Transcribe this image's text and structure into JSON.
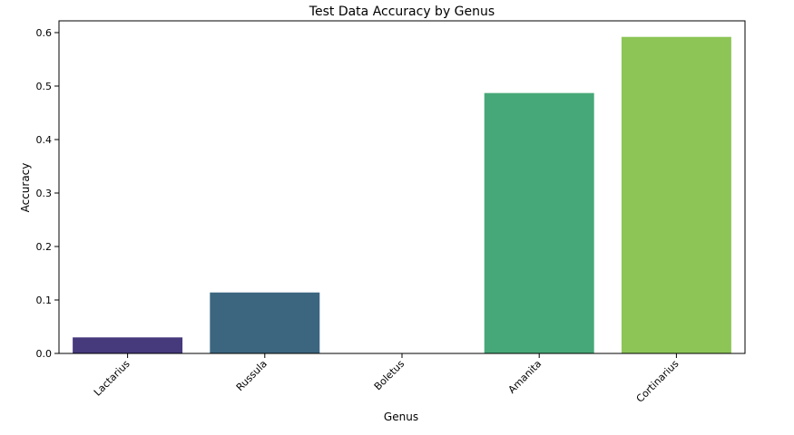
{
  "chart_data": {
    "type": "bar",
    "title": "Test Data Accuracy by Genus",
    "xlabel": "Genus",
    "ylabel": "Accuracy",
    "categories": [
      "Lactarius",
      "Russula",
      "Boletus",
      "Amanita",
      "Cortinarius"
    ],
    "values": [
      0.03,
      0.114,
      0.0,
      0.487,
      0.592
    ],
    "colors": [
      "#46397c",
      "#3c6680",
      "#2e9e88",
      "#46a878",
      "#8dc556"
    ],
    "ylim": [
      0,
      0.622
    ],
    "yticks": [
      "0.0",
      "0.1",
      "0.2",
      "0.3",
      "0.4",
      "0.5",
      "0.6"
    ],
    "grid": false,
    "legend": "none"
  }
}
